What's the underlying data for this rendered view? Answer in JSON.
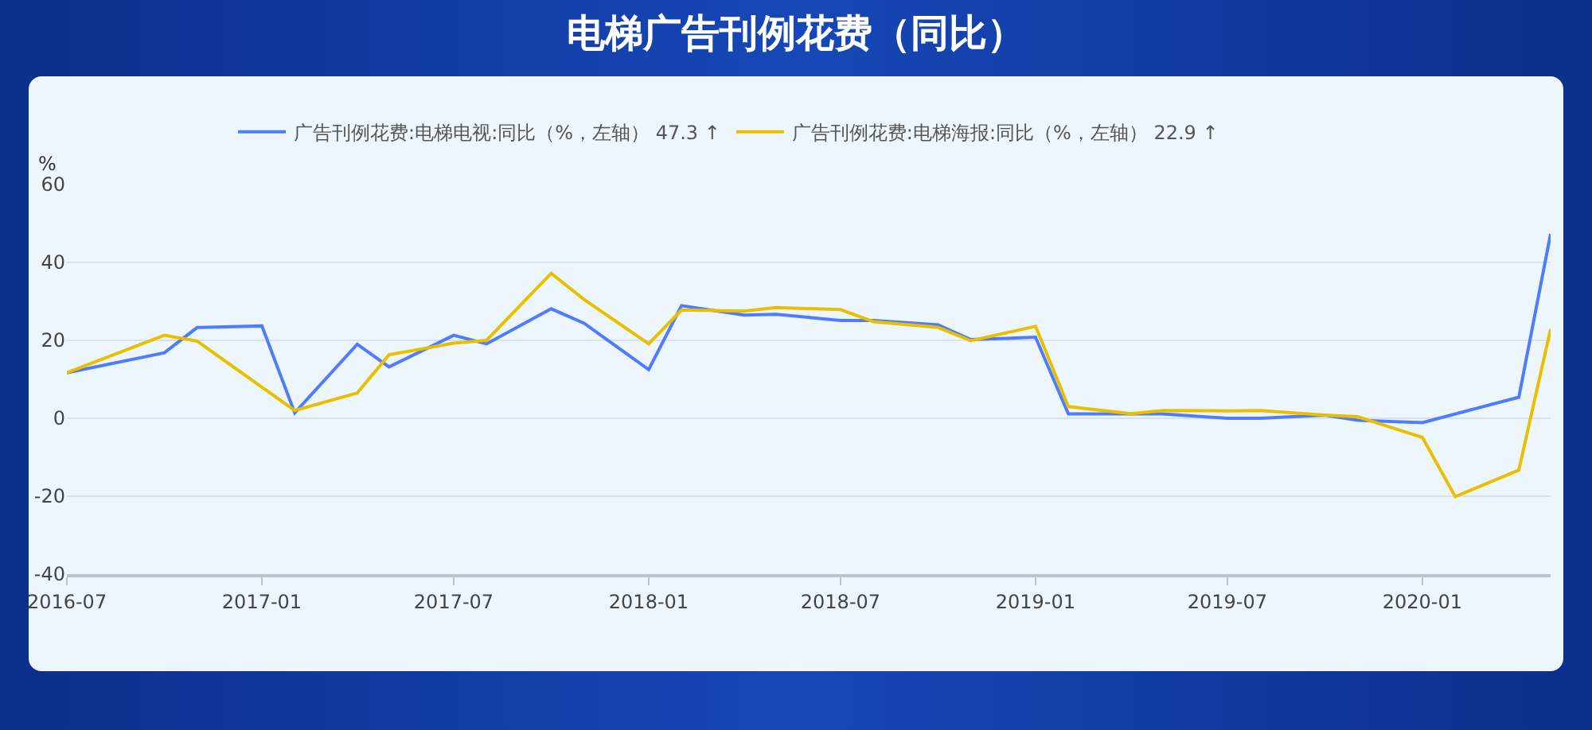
{
  "chart_data": {
    "type": "line",
    "title": "电梯广告刊例花费（同比）",
    "ylabel": "%",
    "series": [
      {
        "name": "广告刊例花费:电梯电视:同比（%，左轴） 47.3 ↑",
        "color": "#4f7cff",
        "x": [
          "2016-07",
          "2016-10",
          "2016-11",
          "2017-01",
          "2017-02",
          "2017-04",
          "2017-05",
          "2017-07",
          "2017-08",
          "2017-10",
          "2017-11",
          "2018-01",
          "2018-02",
          "2018-04",
          "2018-05",
          "2018-07",
          "2018-08",
          "2018-10",
          "2018-11",
          "2019-01",
          "2019-02",
          "2019-04",
          "2019-05",
          "2019-07",
          "2019-08",
          "2019-10",
          "2019-11",
          "2020-01",
          "2020-04",
          "2020-05"
        ],
        "values": [
          11.7,
          16.8,
          23.3,
          23.7,
          1.4,
          19,
          13.2,
          21.3,
          19.1,
          28.1,
          24.4,
          12.5,
          28.9,
          26.5,
          26.7,
          25.1,
          25.1,
          24,
          20.2,
          20.8,
          1.1,
          1.1,
          1.1,
          0,
          0,
          0.8,
          -0.5,
          -1.1,
          5.4,
          47.3
        ]
      },
      {
        "name": "广告刊例花费:电梯海报:同比（%，左轴） 22.9 ↑",
        "color": "#e8c000",
        "x": [
          "2016-07",
          "2016-10",
          "2016-11",
          "2017-02",
          "2017-04",
          "2017-05",
          "2017-07",
          "2017-08",
          "2017-10",
          "2017-11",
          "2018-01",
          "2018-02",
          "2018-04",
          "2018-05",
          "2018-07",
          "2018-08",
          "2018-10",
          "2018-11",
          "2019-01",
          "2019-02",
          "2019-04",
          "2019-05",
          "2019-07",
          "2019-08",
          "2019-10",
          "2019-11",
          "2020-01",
          "2020-02",
          "2020-04",
          "2020-05"
        ],
        "values": [
          11.7,
          21.3,
          19.8,
          2,
          6.5,
          16.3,
          19.3,
          20,
          37.2,
          30.5,
          19.1,
          27.8,
          27.5,
          28.4,
          27.9,
          24.8,
          23.3,
          19.9,
          23.6,
          3,
          1.2,
          2,
          1.9,
          2,
          0.8,
          0.4,
          -4.9,
          -20.1,
          -13.3,
          22.9
        ]
      }
    ],
    "xlim": [
      "2016-07",
      "2020-05"
    ],
    "xticks": [
      "2016-07",
      "2017-01",
      "2017-07",
      "2018-01",
      "2018-07",
      "2019-01",
      "2019-07",
      "2020-01"
    ],
    "ylim": [
      -40,
      60
    ],
    "yticks": [
      -40,
      -20,
      0,
      20,
      40,
      60
    ],
    "grid": "y",
    "legend": "top",
    "marker": "none",
    "line_style": "solid"
  }
}
